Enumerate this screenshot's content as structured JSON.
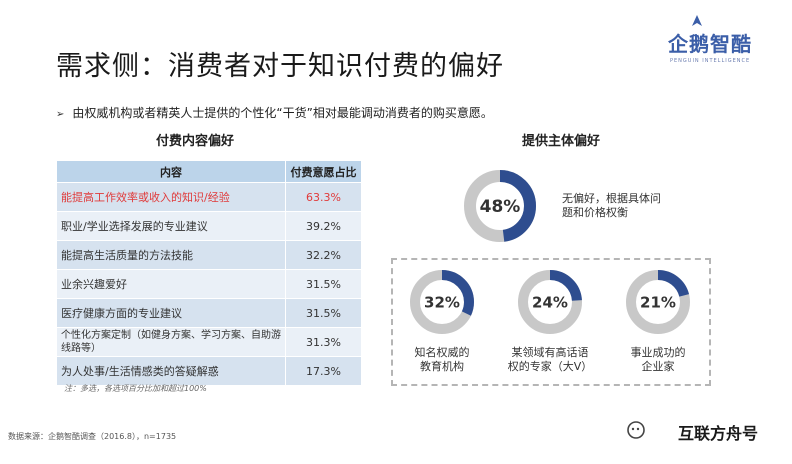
{
  "title": "需求侧：消费者对于知识付费的偏好",
  "logo": {
    "name": "企鹅智酷",
    "subtitle": "PENGUIN INTELLIGENCE"
  },
  "bullet": "由权威机构或者精英人士提供的个性化“干货”相对最能调动消费者的购买意愿。",
  "chart_data": [
    {
      "type": "table",
      "title": "付费内容偏好",
      "columns": [
        "内容",
        "付费意愿占比"
      ],
      "rows": [
        [
          "能提高工作效率或收入的知识/经验",
          "63.3%"
        ],
        [
          "职业/学业选择发展的专业建议",
          "39.2%"
        ],
        [
          "能提高生活质量的方法技能",
          "32.2%"
        ],
        [
          "业余兴趣爱好",
          "31.5%"
        ],
        [
          "医疗健康方面的专业建议",
          "31.5%"
        ],
        [
          "个性化方案定制（如健身方案、学习方案、自助游线路等）",
          "31.3%"
        ],
        [
          "为人处事/生活情感类的答疑解惑",
          "17.3%"
        ]
      ],
      "highlight_row": 0,
      "highlight_color": "#e03a3a",
      "header_color": "#bcd4ea",
      "row_colors": [
        "#d6e2ef",
        "#eaf0f7"
      ],
      "note": "注：多选，各选项百分比加和超过100%"
    },
    {
      "type": "pie",
      "title": "提供主体偏好",
      "items": [
        {
          "value": 48,
          "label": "48%",
          "caption": "无偏好，根据具体问题和价格权衡"
        },
        {
          "value": 32,
          "label": "32%",
          "caption": "知名权威的教育机构"
        },
        {
          "value": 24,
          "label": "24%",
          "caption": "某领域有高话语权的专家（大V）"
        },
        {
          "value": 21,
          "label": "21%",
          "caption": "事业成功的企业家"
        }
      ],
      "fill_color": "#2e4d8f",
      "track_color": "#c8c8c8"
    }
  ],
  "captions": {
    "main_line1": "无偏好，根据具体问",
    "main_line2": "题和价格权衡",
    "d1_line1": "知名权威的",
    "d1_line2": "教育机构",
    "d2_line1": "某领域有高话语",
    "d2_line2": "权的专家（大V）",
    "d3_line1": "事业成功的",
    "d3_line2": "企业家"
  },
  "source": "数据来源：企鹅智酷调查（2016.8），n=1735",
  "watermark": "互联方舟号"
}
